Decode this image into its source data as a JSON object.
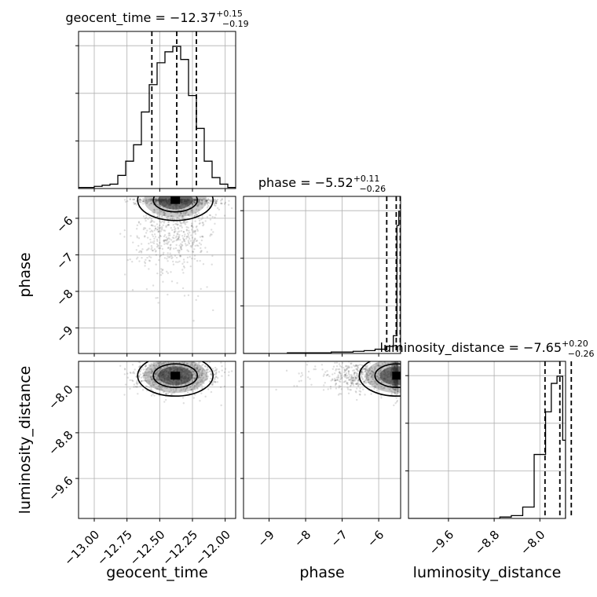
{
  "chart_data": {
    "type": "corner",
    "parameters": [
      "geocent_time",
      "phase",
      "luminosity_distance"
    ],
    "titles": {
      "geocent_time": {
        "name": "geocent_time",
        "median": "−12.37",
        "plus": "+0.15",
        "minus": "−0.19"
      },
      "phase": {
        "name": "phase",
        "median": "−5.52",
        "plus": "+0.11",
        "minus": "−0.26"
      },
      "luminosity_distance": {
        "name": "luminosity_distance",
        "median": "−7.65",
        "plus": "+0.20",
        "minus": "−0.26"
      }
    },
    "ranges": {
      "geocent_time": [
        -13.12,
        -11.92
      ],
      "phase": [
        -9.7,
        -5.4
      ],
      "luminosity_distance": [
        -10.3,
        -7.55
      ]
    },
    "ticks": {
      "geocent_time": [
        {
          "v": -13.0,
          "label": "−13.00"
        },
        {
          "v": -12.75,
          "label": "−12.75"
        },
        {
          "v": -12.5,
          "label": "−12.50"
        },
        {
          "v": -12.25,
          "label": "−12.25"
        },
        {
          "v": -12.0,
          "label": "−12.00"
        }
      ],
      "phase": [
        {
          "v": -9,
          "label": "−9"
        },
        {
          "v": -8,
          "label": "−8"
        },
        {
          "v": -7,
          "label": "−7"
        },
        {
          "v": -6,
          "label": "−6"
        }
      ],
      "luminosity_distance": [
        {
          "v": -9.6,
          "label": "−9.6"
        },
        {
          "v": -8.8,
          "label": "−8.8"
        },
        {
          "v": -8.0,
          "label": "−8.0"
        }
      ]
    },
    "quantiles": {
      "geocent_time": [
        -12.56,
        -12.37,
        -12.22
      ],
      "phase": [
        -5.78,
        -5.52,
        -5.41
      ],
      "luminosity_distance": [
        -7.91,
        -7.65,
        -7.45
      ]
    },
    "histograms": {
      "geocent_time": {
        "edges": [
          -13.12,
          -13.06,
          -13.0,
          -12.94,
          -12.88,
          -12.82,
          -12.76,
          -12.7,
          -12.64,
          -12.58,
          -12.52,
          -12.46,
          -12.4,
          -12.34,
          -12.28,
          -12.22,
          -12.16,
          -12.1,
          -12.04,
          -11.98,
          -11.92
        ],
        "counts": [
          1,
          1,
          2,
          3,
          4,
          12,
          25,
          40,
          70,
          95,
          115,
          125,
          130,
          118,
          85,
          55,
          25,
          10,
          4,
          1
        ]
      },
      "phase": {
        "edges": [
          -9.7,
          -9.4,
          -9.1,
          -8.8,
          -8.5,
          -8.2,
          -7.9,
          -7.6,
          -7.3,
          -7.0,
          -6.7,
          -6.4,
          -6.1,
          -5.8,
          -5.6,
          -5.5,
          -5.45,
          -5.4
        ],
        "counts": [
          0,
          0,
          0,
          0,
          1,
          1,
          1,
          1,
          2,
          2,
          3,
          4,
          6,
          10,
          25,
          180,
          200
        ]
      },
      "luminosity_distance": {
        "edges": [
          -10.3,
          -10.1,
          -9.9,
          -9.7,
          -9.5,
          -9.3,
          -9.1,
          -8.9,
          -8.7,
          -8.5,
          -8.3,
          -8.1,
          -7.9,
          -7.8,
          -7.7,
          -7.6,
          -7.55
        ],
        "counts": [
          0,
          0,
          0,
          0,
          0,
          0,
          0,
          0,
          1,
          2,
          8,
          45,
          75,
          95,
          100,
          55
        ]
      }
    },
    "grid": true,
    "legend": "none"
  }
}
